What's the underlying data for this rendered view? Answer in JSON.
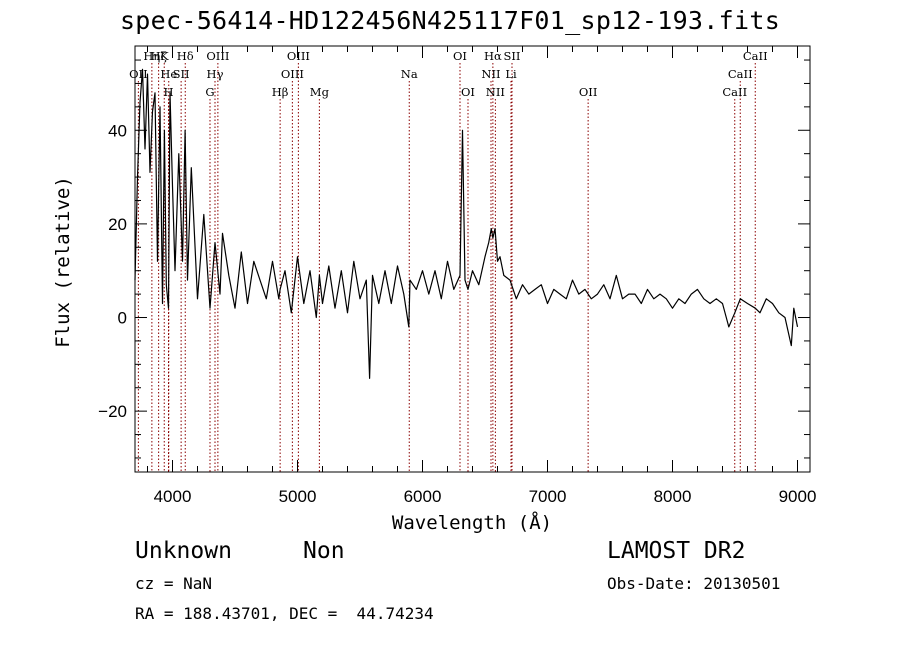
{
  "chart_data": {
    "type": "line",
    "title": "spec-56414-HD122456N425117F01_sp12-193.fits",
    "xlabel": "Wavelength (Å)",
    "ylabel": "Flux (relative)",
    "xlim": [
      3700,
      9100
    ],
    "ylim": [
      -33,
      58
    ],
    "xticks": [
      4000,
      5000,
      6000,
      7000,
      8000,
      9000
    ],
    "yticks": [
      -20,
      0,
      20,
      40
    ],
    "grid": false,
    "colors": {
      "spectrum": "#000000",
      "lines": "#8b0000"
    },
    "series": [
      {
        "x": [
          3700,
          3720,
          3740,
          3760,
          3780,
          3800,
          3820,
          3840,
          3860,
          3880,
          3900,
          3920,
          3935,
          3950,
          3968,
          3980,
          4000,
          4020,
          4050,
          4080,
          4101,
          4120,
          4150,
          4200,
          4250,
          4300,
          4340,
          4380,
          4400,
          4450,
          4500,
          4550,
          4600,
          4650,
          4700,
          4750,
          4800,
          4850,
          4861,
          4900,
          4950,
          5000,
          5050,
          5100,
          5150,
          5175,
          5200,
          5250,
          5300,
          5350,
          5400,
          5450,
          5500,
          5550,
          5577,
          5600,
          5650,
          5700,
          5750,
          5800,
          5850,
          5890,
          5900,
          5950,
          6000,
          6050,
          6100,
          6150,
          6200,
          6250,
          6300,
          6320,
          6340,
          6364,
          6400,
          6450,
          6500,
          6530,
          6550,
          6563,
          6580,
          6600,
          6620,
          6650,
          6700,
          6750,
          6800,
          6850,
          6900,
          6950,
          7000,
          7050,
          7100,
          7150,
          7200,
          7250,
          7300,
          7350,
          7400,
          7450,
          7500,
          7550,
          7600,
          7650,
          7700,
          7750,
          7800,
          7850,
          7900,
          7950,
          8000,
          8050,
          8100,
          8150,
          8200,
          8250,
          8300,
          8350,
          8400,
          8450,
          8498,
          8542,
          8600,
          8662,
          8700,
          8750,
          8800,
          8850,
          8900,
          8950,
          8970,
          9000
        ],
        "y": [
          8,
          30,
          46,
          53,
          36,
          52,
          31,
          44,
          48,
          12,
          45,
          3,
          40,
          7,
          2,
          48,
          28,
          10,
          35,
          12,
          40,
          8,
          32,
          4,
          22,
          2,
          16,
          5,
          18,
          9,
          2,
          14,
          3,
          12,
          8,
          4,
          12,
          4,
          6,
          10,
          1,
          13,
          3,
          10,
          0,
          9,
          3,
          11,
          2,
          10,
          1,
          12,
          4,
          8,
          -13,
          9,
          3,
          10,
          3,
          11,
          5,
          -2,
          8,
          6,
          10,
          5,
          10,
          4,
          12,
          6,
          9,
          40,
          8,
          6,
          10,
          7,
          13,
          16,
          19,
          17,
          19,
          12,
          13,
          9,
          8,
          4,
          7,
          5,
          6,
          7,
          3,
          6,
          5,
          4,
          8,
          5,
          6,
          4,
          5,
          7,
          4,
          9,
          4,
          5,
          5,
          3,
          6,
          4,
          5,
          4,
          2,
          4,
          3,
          5,
          6,
          4,
          3,
          4,
          3,
          -2,
          1,
          4,
          3,
          2,
          1,
          4,
          3,
          1,
          0,
          -6,
          2,
          -2
        ]
      }
    ],
    "annotations": [
      {
        "label": "OII",
        "x": 3727,
        "level": 3
      },
      {
        "label": "Hη",
        "x": 3835,
        "level": 1
      },
      {
        "label": "Hζ",
        "x": 3889,
        "level": 1
      },
      {
        "label": "K",
        "x": 3934,
        "level": 1
      },
      {
        "label": "He",
        "x": 3970,
        "level": 3
      },
      {
        "label": "H",
        "x": 3968,
        "level": 4
      },
      {
        "label": "SII",
        "x": 4069,
        "level": 3
      },
      {
        "label": "Hδ",
        "x": 4102,
        "level": 1
      },
      {
        "label": "G",
        "x": 4300,
        "level": 4
      },
      {
        "label": "Hγ",
        "x": 4340,
        "level": 3
      },
      {
        "label": "OIII",
        "x": 4363,
        "level": 1
      },
      {
        "label": "Hβ",
        "x": 4861,
        "level": 4
      },
      {
        "label": "OIII",
        "x": 4959,
        "level": 3
      },
      {
        "label": "OIII",
        "x": 5007,
        "level": 1
      },
      {
        "label": "Mg",
        "x": 5175,
        "level": 4
      },
      {
        "label": "Na",
        "x": 5894,
        "level": 3
      },
      {
        "label": "OI",
        "x": 6300,
        "level": 1
      },
      {
        "label": "OI",
        "x": 6364,
        "level": 4
      },
      {
        "label": "NII",
        "x": 6548,
        "level": 3
      },
      {
        "label": "Hα",
        "x": 6563,
        "level": 1
      },
      {
        "label": "NII",
        "x": 6583,
        "level": 4
      },
      {
        "label": "SII",
        "x": 6716,
        "level": 1
      },
      {
        "label": "Li",
        "x": 6708,
        "level": 3
      },
      {
        "label": "OII",
        "x": 7325,
        "level": 4
      },
      {
        "label": "CaII",
        "x": 8498,
        "level": 4
      },
      {
        "label": "CaII",
        "x": 8542,
        "level": 3
      },
      {
        "label": "CaII",
        "x": 8662,
        "level": 1
      }
    ]
  },
  "info": {
    "class": "Unknown",
    "subclass": "Non",
    "release": "LAMOST DR2",
    "cz": "cz = NaN",
    "obs_date": "Obs-Date: 20130501",
    "coords": "RA = 188.43701, DEC =  44.74234"
  }
}
